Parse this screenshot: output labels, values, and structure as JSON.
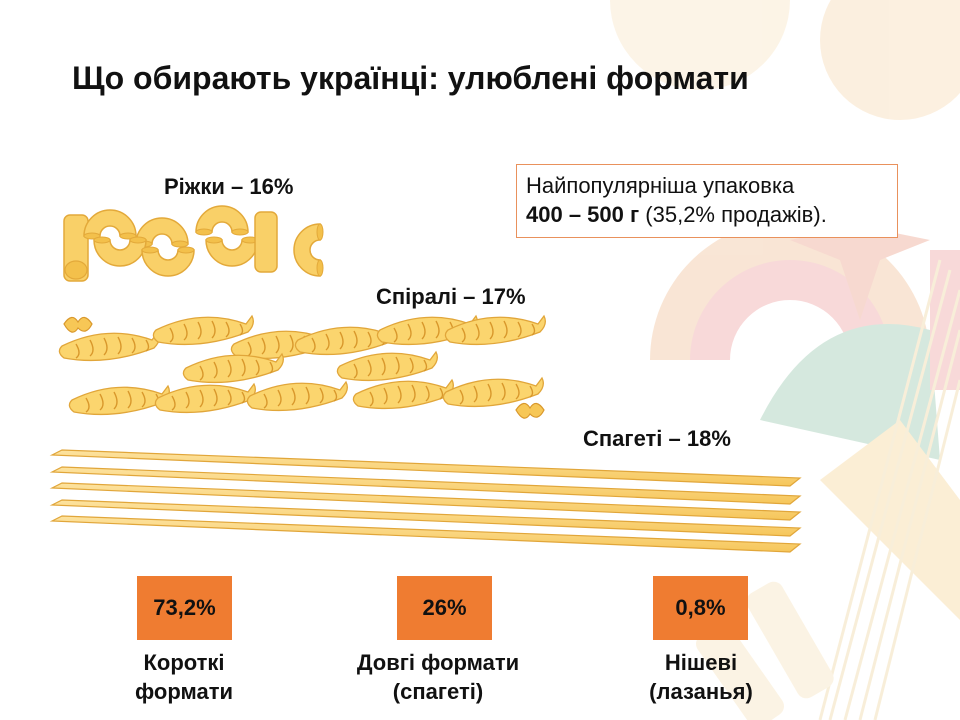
{
  "title": "Що обирають українці: улюблені формати",
  "labels": {
    "rizhky": "Ріжки – 16%",
    "spirali": "Спіралі – 17%",
    "spaghetti": "Спагеті – 18%"
  },
  "packaging": {
    "line1": "Найпопулярніша упаковка",
    "weight": "400 – 500 г",
    "share": "(35,2% продажів)."
  },
  "formats": [
    {
      "value": "73,2%",
      "line1": "Короткі",
      "line2": "формати"
    },
    {
      "value": "26%",
      "line1": "Довгі формати",
      "line2": "(спагеті)"
    },
    {
      "value": "0,8%",
      "line1": "Нішеві",
      "line2": "(лазанья)"
    }
  ],
  "colors": {
    "accent": "#ef7c31",
    "pasta": "#f9d068",
    "border": "#e9915c"
  },
  "icons": [
    "elbow-macaroni-icon",
    "fusilli-spiral-icon",
    "spaghetti-strand-icon",
    "farfalle-icon"
  ]
}
